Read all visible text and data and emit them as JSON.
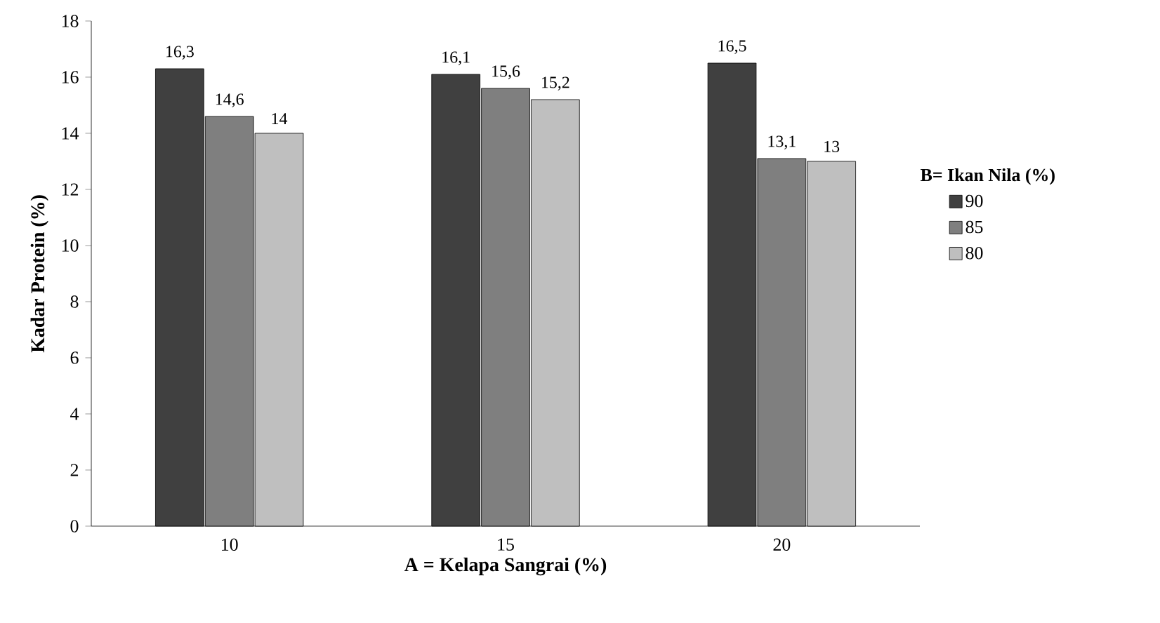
{
  "chart_data": {
    "type": "bar",
    "xlabel": "A = Kelapa Sangrai (%)",
    "ylabel": "Kadar Protein (%)",
    "legend_title": "B= Ikan Nila (%)",
    "legend": "right",
    "grid": false,
    "categories": [
      "10",
      "15",
      "20"
    ],
    "ylim": [
      0,
      18
    ],
    "yticks": [
      0,
      2,
      4,
      6,
      8,
      10,
      12,
      14,
      16,
      18
    ],
    "series": [
      {
        "name": "90",
        "color": "#404040",
        "values": [
          16.3,
          16.1,
          16.5
        ],
        "value_labels": [
          "16,3",
          "16,1",
          "16,5"
        ]
      },
      {
        "name": "85",
        "color": "#7f7f7f",
        "values": [
          14.6,
          15.6,
          13.1
        ],
        "value_labels": [
          "14,6",
          "15,6",
          "13,1"
        ]
      },
      {
        "name": "80",
        "color": "#bfbfbf",
        "values": [
          14,
          15.2,
          13
        ],
        "value_labels": [
          "14",
          "15,2",
          "13"
        ]
      }
    ]
  }
}
